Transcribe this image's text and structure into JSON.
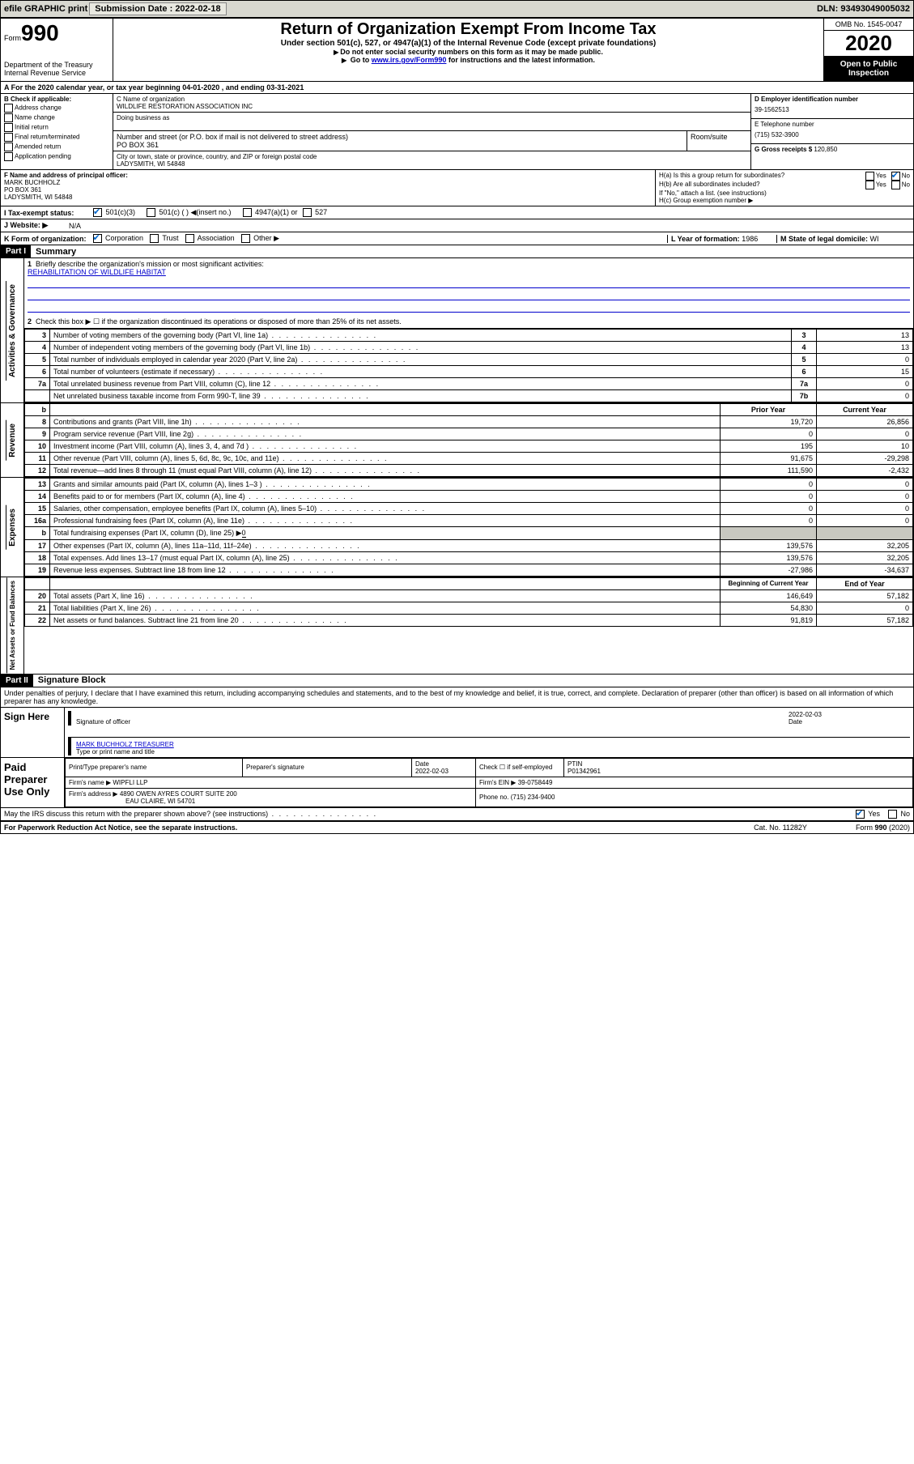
{
  "top_bar": {
    "efile": "efile GRAPHIC print",
    "submission_label": "Submission Date : 2022-02-18",
    "dln": "DLN: 93493049005032"
  },
  "header": {
    "form_word": "Form",
    "form_num": "990",
    "dept": "Department of the Treasury Internal Revenue Service",
    "title": "Return of Organization Exempt From Income Tax",
    "subtitle": "Under section 501(c), 527, or 4947(a)(1) of the Internal Revenue Code (except private foundations)",
    "note1": "Do not enter social security numbers on this form as it may be made public.",
    "note2_pre": "Go to ",
    "note2_link": "www.irs.gov/Form990",
    "note2_post": " for instructions and the latest information.",
    "omb": "OMB No. 1545-0047",
    "year": "2020",
    "inspection": "Open to Public Inspection"
  },
  "row_a": "A For the 2020 calendar year, or tax year beginning 04-01-2020   , and ending 03-31-2021",
  "section_b": {
    "label": "B Check if applicable:",
    "opts": [
      "Address change",
      "Name change",
      "Initial return",
      "Final return/terminated",
      "Amended return",
      "Application pending"
    ]
  },
  "section_c": {
    "name_label": "C Name of organization",
    "name": "WILDLIFE RESTORATION ASSOCIATION INC",
    "dba_label": "Doing business as",
    "street_label": "Number and street (or P.O. box if mail is not delivered to street address)",
    "street": "PO BOX 361",
    "room_label": "Room/suite",
    "city_label": "City or town, state or province, country, and ZIP or foreign postal code",
    "city": "LADYSMITH, WI  54848"
  },
  "section_d": {
    "ein_label": "D Employer identification number",
    "ein": "39-1562513",
    "phone_label": "E Telephone number",
    "phone": "(715) 532-3900",
    "gross_label": "G Gross receipts $",
    "gross": "120,850"
  },
  "section_f": {
    "label": "F Name and address of principal officer:",
    "name": "MARK BUCHHOLZ",
    "street": "PO BOX 361",
    "city": "LADYSMITH, WI  54848"
  },
  "section_h": {
    "ha": "H(a)  Is this a group return for subordinates?",
    "hb": "H(b)  Are all subordinates included?",
    "hb_note": "If \"No,\" attach a list. (see instructions)",
    "hc": "H(c)  Group exemption number ▶",
    "yes": "Yes",
    "no": "No"
  },
  "row_i": {
    "label": "I   Tax-exempt status:",
    "o1": "501(c)(3)",
    "o2": "501(c) (  ) ◀(insert no.)",
    "o3": "4947(a)(1) or",
    "o4": "527"
  },
  "row_j": {
    "label": "J   Website: ▶",
    "val": "N/A"
  },
  "row_k": {
    "label": "K Form of organization:",
    "o1": "Corporation",
    "o2": "Trust",
    "o3": "Association",
    "o4": "Other ▶",
    "l_label": "L Year of formation:",
    "l_val": "1986",
    "m_label": "M State of legal domicile:",
    "m_val": "WI"
  },
  "part1": {
    "header": "Part I",
    "title": "Summary",
    "vert_ag": "Activities & Governance",
    "vert_rev": "Revenue",
    "vert_exp": "Expenses",
    "vert_net": "Net Assets or Fund Balances",
    "line1_label": "Briefly describe the organization's mission or most significant activities:",
    "line1_val": "REHABILITATION OF WILDLIFE HABITAT",
    "line2": "Check this box ▶ ☐ if the organization discontinued its operations or disposed of more than 25% of its net assets.",
    "rows_top": [
      {
        "n": "3",
        "label": "Number of voting members of the governing body (Part VI, line 1a)",
        "box": "3",
        "val": "13"
      },
      {
        "n": "4",
        "label": "Number of independent voting members of the governing body (Part VI, line 1b)",
        "box": "4",
        "val": "13"
      },
      {
        "n": "5",
        "label": "Total number of individuals employed in calendar year 2020 (Part V, line 2a)",
        "box": "5",
        "val": "0"
      },
      {
        "n": "6",
        "label": "Total number of volunteers (estimate if necessary)",
        "box": "6",
        "val": "15"
      },
      {
        "n": "7a",
        "label": "Total unrelated business revenue from Part VIII, column (C), line 12",
        "box": "7a",
        "val": "0"
      },
      {
        "n": "",
        "label": "Net unrelated business taxable income from Form 990-T, line 39",
        "box": "7b",
        "val": "0"
      }
    ],
    "col_prior": "Prior Year",
    "col_current": "Current Year",
    "col_begin": "Beginning of Current Year",
    "col_end": "End of Year",
    "rev_rows": [
      {
        "n": "8",
        "label": "Contributions and grants (Part VIII, line 1h)",
        "prior": "19,720",
        "curr": "26,856"
      },
      {
        "n": "9",
        "label": "Program service revenue (Part VIII, line 2g)",
        "prior": "0",
        "curr": "0"
      },
      {
        "n": "10",
        "label": "Investment income (Part VIII, column (A), lines 3, 4, and 7d )",
        "prior": "195",
        "curr": "10"
      },
      {
        "n": "11",
        "label": "Other revenue (Part VIII, column (A), lines 5, 6d, 8c, 9c, 10c, and 11e)",
        "prior": "91,675",
        "curr": "-29,298"
      },
      {
        "n": "12",
        "label": "Total revenue—add lines 8 through 11 (must equal Part VIII, column (A), line 12)",
        "prior": "111,590",
        "curr": "-2,432"
      }
    ],
    "exp_rows": [
      {
        "n": "13",
        "label": "Grants and similar amounts paid (Part IX, column (A), lines 1–3 )",
        "prior": "0",
        "curr": "0"
      },
      {
        "n": "14",
        "label": "Benefits paid to or for members (Part IX, column (A), line 4)",
        "prior": "0",
        "curr": "0"
      },
      {
        "n": "15",
        "label": "Salaries, other compensation, employee benefits (Part IX, column (A), lines 5–10)",
        "prior": "0",
        "curr": "0"
      },
      {
        "n": "16a",
        "label": "Professional fundraising fees (Part IX, column (A), line 11e)",
        "prior": "0",
        "curr": "0"
      }
    ],
    "exp_b": {
      "n": "b",
      "label": "Total fundraising expenses (Part IX, column (D), line 25) ▶",
      "val": "0"
    },
    "exp_rows2": [
      {
        "n": "17",
        "label": "Other expenses (Part IX, column (A), lines 11a–11d, 11f–24e)",
        "prior": "139,576",
        "curr": "32,205"
      },
      {
        "n": "18",
        "label": "Total expenses. Add lines 13–17 (must equal Part IX, column (A), line 25)",
        "prior": "139,576",
        "curr": "32,205"
      },
      {
        "n": "19",
        "label": "Revenue less expenses. Subtract line 18 from line 12",
        "prior": "-27,986",
        "curr": "-34,637"
      }
    ],
    "net_rows": [
      {
        "n": "20",
        "label": "Total assets (Part X, line 16)",
        "prior": "146,649",
        "curr": "57,182"
      },
      {
        "n": "21",
        "label": "Total liabilities (Part X, line 26)",
        "prior": "54,830",
        "curr": "0"
      },
      {
        "n": "22",
        "label": "Net assets or fund balances. Subtract line 21 from line 20",
        "prior": "91,819",
        "curr": "57,182"
      }
    ]
  },
  "part2": {
    "header": "Part II",
    "title": "Signature Block",
    "declaration": "Under penalties of perjury, I declare that I have examined this return, including accompanying schedules and statements, and to the best of my knowledge and belief, it is true, correct, and complete. Declaration of preparer (other than officer) is based on all information of which preparer has any knowledge.",
    "sign_here": "Sign Here",
    "sig_officer": "Signature of officer",
    "date_label": "Date",
    "sig_date": "2022-02-03",
    "officer_name": "MARK BUCHHOLZ  TREASURER",
    "type_name": "Type or print name and title",
    "paid_prep": "Paid Preparer Use Only",
    "prep_name_label": "Print/Type preparer's name",
    "prep_sig_label": "Preparer's signature",
    "prep_date": "2022-02-03",
    "prep_check": "Check ☐ if self-employed",
    "ptin_label": "PTIN",
    "ptin": "P01342961",
    "firm_name_label": "Firm's name   ▶",
    "firm_name": "WIPFLI LLP",
    "firm_ein_label": "Firm's EIN ▶",
    "firm_ein": "39-0758449",
    "firm_addr_label": "Firm's address ▶",
    "firm_addr1": "4890 OWEN AYRES COURT SUITE 200",
    "firm_addr2": "EAU CLAIRE, WI  54701",
    "firm_phone_label": "Phone no.",
    "firm_phone": "(715) 234-9400",
    "irs_discuss": "May the IRS discuss this return with the preparer shown above? (see instructions)"
  },
  "footer": {
    "paperwork": "For Paperwork Reduction Act Notice, see the separate instructions.",
    "cat": "Cat. No. 11282Y",
    "form": "Form 990 (2020)"
  },
  "colors": {
    "topbar_bg": "#d8d8d0",
    "link": "#0000cc",
    "check": "#0066cc",
    "grey_cell": "#c8c8c0"
  }
}
